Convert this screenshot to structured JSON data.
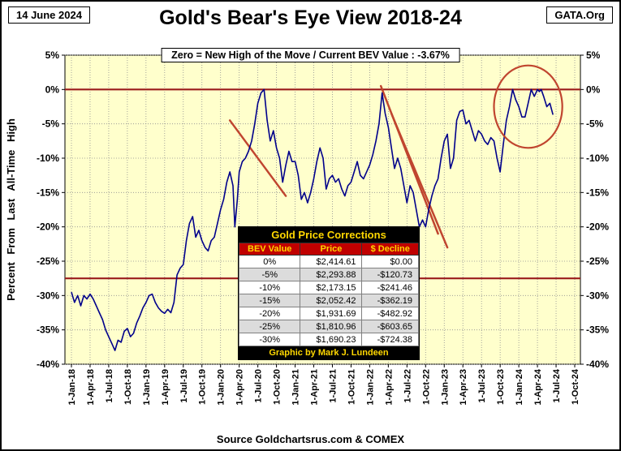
{
  "header": {
    "date": "14 June 2024",
    "org": "GATA.Org",
    "title": "Gold's Bear's Eye View 2018-24",
    "subtitle": "Zero = New High of the Move / Current  BEV Value : -3.67%"
  },
  "footer": {
    "source": "Source Goldchartsrus.com & COMEX"
  },
  "table": {
    "title": "Gold Price Corrections",
    "columns": [
      "BEV Value",
      "Price",
      "$ Decline"
    ],
    "rows": [
      [
        "0%",
        "$2,414.61",
        "$0.00"
      ],
      [
        "-5%",
        "$2,293.88",
        "-$120.73"
      ],
      [
        "-10%",
        "$2,173.15",
        "-$241.46"
      ],
      [
        "-15%",
        "$2,052.42",
        "-$362.19"
      ],
      [
        "-20%",
        "$1,931.69",
        "-$482.92"
      ],
      [
        "-25%",
        "$1,810.96",
        "-$603.65"
      ],
      [
        "-30%",
        "$1,690.23",
        "-$724.38"
      ]
    ],
    "footer": "Graphic by Mark J. Lundeen"
  },
  "chart_data": {
    "type": "line",
    "title": "Gold's Bear's Eye View 2018-24",
    "subtitle": "Zero = New High of the Move / Current BEV Value : -3.67%",
    "ylabel": "Percent From Last All-Time High",
    "ylim": [
      -40,
      5
    ],
    "y_ticks": [
      5,
      0,
      -5,
      -10,
      -15,
      -20,
      -25,
      -30,
      -35,
      -40
    ],
    "x_unit": "months since 1-Jan-2018",
    "xlim": [
      0,
      81
    ],
    "x_tick_step_months": 3,
    "x_tick_labels": [
      "1-Jan-18",
      "1-Apr-18",
      "1-Jul-18",
      "1-Oct-18",
      "1-Jan-19",
      "1-Apr-19",
      "1-Jul-19",
      "1-Oct-19",
      "1-Jan-20",
      "1-Apr-20",
      "1-Jul-20",
      "1-Oct-20",
      "1-Jan-21",
      "1-Apr-21",
      "1-Jul-21",
      "1-Oct-21",
      "1-Jan-22",
      "1-Apr-22",
      "1-Jul-22",
      "1-Oct-22",
      "1-Jan-23",
      "1-Apr-23",
      "1-Jul-23",
      "1-Oct-23",
      "1-Jan-24",
      "1-Apr-24",
      "1-Jul-24",
      "1-Oct-24"
    ],
    "grid": true,
    "legend": false,
    "plot_bg": "#FFFFCC",
    "grid_color": "#8F8F8F",
    "series": [
      {
        "name": "Gold BEV (% from last all-time high)",
        "color": "#00008B",
        "points": [
          [
            0,
            -29.5
          ],
          [
            0.5,
            -31
          ],
          [
            1,
            -30
          ],
          [
            1.5,
            -31.5
          ],
          [
            2,
            -30
          ],
          [
            2.5,
            -30.5
          ],
          [
            3,
            -29.8
          ],
          [
            3.5,
            -30.5
          ],
          [
            4,
            -31.5
          ],
          [
            4.5,
            -32.5
          ],
          [
            5,
            -33.5
          ],
          [
            5.5,
            -35
          ],
          [
            6,
            -36
          ],
          [
            6.5,
            -37
          ],
          [
            7,
            -38
          ],
          [
            7.5,
            -36.5
          ],
          [
            8,
            -36.8
          ],
          [
            8.5,
            -35.2
          ],
          [
            9,
            -34.8
          ],
          [
            9.5,
            -36
          ],
          [
            10,
            -35.5
          ],
          [
            10.5,
            -34
          ],
          [
            11,
            -33
          ],
          [
            11.5,
            -31.8
          ],
          [
            12,
            -31
          ],
          [
            12.5,
            -30
          ],
          [
            13,
            -29.8
          ],
          [
            13.5,
            -31
          ],
          [
            14,
            -31.8
          ],
          [
            14.5,
            -32.3
          ],
          [
            15,
            -32.6
          ],
          [
            15.5,
            -32
          ],
          [
            16,
            -32.5
          ],
          [
            16.5,
            -31
          ],
          [
            17,
            -27
          ],
          [
            17.5,
            -26
          ],
          [
            18,
            -25.5
          ],
          [
            18.5,
            -22
          ],
          [
            19,
            -19.5
          ],
          [
            19.5,
            -18.5
          ],
          [
            20,
            -21.5
          ],
          [
            20.5,
            -20.5
          ],
          [
            21,
            -22
          ],
          [
            21.5,
            -23
          ],
          [
            22,
            -23.5
          ],
          [
            22.5,
            -22
          ],
          [
            23,
            -21.5
          ],
          [
            23.5,
            -19.5
          ],
          [
            24,
            -17.5
          ],
          [
            24.5,
            -16
          ],
          [
            25,
            -13.5
          ],
          [
            25.5,
            -12
          ],
          [
            26,
            -14
          ],
          [
            26.3,
            -20
          ],
          [
            26.7,
            -16
          ],
          [
            27,
            -12
          ],
          [
            27.5,
            -10.5
          ],
          [
            28,
            -10
          ],
          [
            28.5,
            -9
          ],
          [
            29,
            -7.5
          ],
          [
            29.5,
            -5
          ],
          [
            30,
            -2
          ],
          [
            30.5,
            -0.5
          ],
          [
            31,
            0
          ],
          [
            31.5,
            -4.5
          ],
          [
            32,
            -7.5
          ],
          [
            32.5,
            -6
          ],
          [
            33,
            -8.5
          ],
          [
            33.5,
            -10
          ],
          [
            34,
            -13.5
          ],
          [
            34.5,
            -11
          ],
          [
            35,
            -9
          ],
          [
            35.5,
            -10.5
          ],
          [
            36,
            -10.5
          ],
          [
            36.5,
            -12.5
          ],
          [
            37,
            -16
          ],
          [
            37.5,
            -15
          ],
          [
            38,
            -16.5
          ],
          [
            38.5,
            -15
          ],
          [
            39,
            -13
          ],
          [
            39.5,
            -10.5
          ],
          [
            40,
            -8.5
          ],
          [
            40.5,
            -10
          ],
          [
            41,
            -14.5
          ],
          [
            41.5,
            -13
          ],
          [
            42,
            -12.5
          ],
          [
            42.5,
            -13.5
          ],
          [
            43,
            -13
          ],
          [
            43.5,
            -14.5
          ],
          [
            44,
            -15.5
          ],
          [
            44.5,
            -14
          ],
          [
            45,
            -13.5
          ],
          [
            45.5,
            -12
          ],
          [
            46,
            -10.5
          ],
          [
            46.5,
            -12.5
          ],
          [
            47,
            -13
          ],
          [
            47.5,
            -12
          ],
          [
            48,
            -11
          ],
          [
            48.5,
            -9.5
          ],
          [
            49,
            -7.5
          ],
          [
            49.5,
            -5
          ],
          [
            50,
            -0.5
          ],
          [
            50.5,
            -3.5
          ],
          [
            51,
            -5.5
          ],
          [
            51.5,
            -8.5
          ],
          [
            52,
            -11.5
          ],
          [
            52.5,
            -10
          ],
          [
            53,
            -11.5
          ],
          [
            53.5,
            -14
          ],
          [
            54,
            -16.5
          ],
          [
            54.5,
            -14
          ],
          [
            55,
            -15
          ],
          [
            55.5,
            -17.5
          ],
          [
            56,
            -20
          ],
          [
            56.5,
            -19
          ],
          [
            57,
            -20
          ],
          [
            57.5,
            -17.5
          ],
          [
            58,
            -15.5
          ],
          [
            58.5,
            -14
          ],
          [
            59,
            -13
          ],
          [
            59.5,
            -10
          ],
          [
            60,
            -7.5
          ],
          [
            60.5,
            -6.5
          ],
          [
            61,
            -11.5
          ],
          [
            61.5,
            -10
          ],
          [
            62,
            -4.5
          ],
          [
            62.5,
            -3.2
          ],
          [
            63,
            -3
          ],
          [
            63.5,
            -5
          ],
          [
            64,
            -4.5
          ],
          [
            64.5,
            -6
          ],
          [
            65,
            -7.5
          ],
          [
            65.5,
            -6
          ],
          [
            66,
            -6.5
          ],
          [
            66.5,
            -7.5
          ],
          [
            67,
            -8
          ],
          [
            67.5,
            -7
          ],
          [
            68,
            -7.5
          ],
          [
            68.5,
            -10
          ],
          [
            69,
            -12
          ],
          [
            69.5,
            -8
          ],
          [
            70,
            -4.5
          ],
          [
            70.5,
            -2.5
          ],
          [
            71,
            0
          ],
          [
            71.5,
            -1.5
          ],
          [
            72,
            -2.5
          ],
          [
            72.5,
            -4
          ],
          [
            73,
            -4
          ],
          [
            73.5,
            -2
          ],
          [
            74,
            0
          ],
          [
            74.5,
            -1
          ],
          [
            75,
            0
          ],
          [
            75.3,
            -0.3
          ],
          [
            75.6,
            0
          ],
          [
            76,
            -1
          ],
          [
            76.5,
            -2.5
          ],
          [
            77,
            -2
          ],
          [
            77.5,
            -3.67
          ]
        ]
      }
    ],
    "annotations": {
      "hline_color": "#9B1C1C",
      "trend_color": "#C0452F",
      "hlines": [
        {
          "y": 0
        },
        {
          "y": -27.5
        }
      ],
      "trendlines": [
        {
          "x1": 25.5,
          "y1": -4.5,
          "x2": 34.5,
          "y2": -15.5
        },
        {
          "x1": 49.8,
          "y1": 0.5,
          "x2": 59,
          "y2": -21
        },
        {
          "x1": 51.5,
          "y1": -3.5,
          "x2": 60.5,
          "y2": -23
        }
      ],
      "ellipse": {
        "cx": 73.5,
        "cy": -2.5,
        "rx": 5.5,
        "ry": 6
      }
    }
  }
}
